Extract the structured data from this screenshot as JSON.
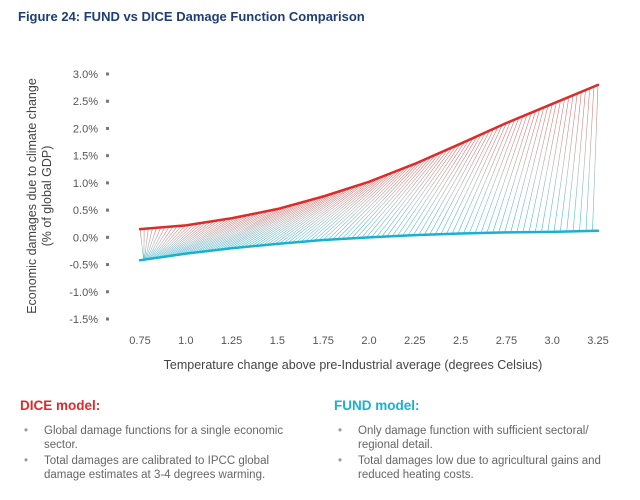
{
  "figure_title": "Figure 24: FUND vs DICE Damage Function Comparison",
  "chart_data": {
    "type": "line",
    "title": "Figure 24: FUND vs DICE Damage Function Comparison",
    "xlabel": "Temperature change above pre-Industrial average (degrees Celsius)",
    "ylabel": "Economic damages due to climate change (% of global GDP)",
    "x_ticks": [
      "0.75",
      "1.0",
      "1.25",
      "1.5",
      "1.75",
      "2.0",
      "2.25",
      "2.5",
      "2.75",
      "3.0",
      "3.25"
    ],
    "y_ticks": [
      "3.0%",
      "2.5%",
      "2.0%",
      "1.5%",
      "1.0%",
      "0.5%",
      "0.0%",
      "-0.5%",
      "-1.0%",
      "-1.5%"
    ],
    "xlim": [
      0.6,
      3.35
    ],
    "ylim": [
      -1.5,
      3.0
    ],
    "grid": false,
    "series": [
      {
        "name": "DICE model",
        "color": "#e02a2a",
        "x": [
          0.75,
          1.0,
          1.25,
          1.5,
          1.75,
          2.0,
          2.25,
          2.5,
          2.75,
          3.0,
          3.25
        ],
        "values": [
          0.15,
          0.22,
          0.35,
          0.52,
          0.75,
          1.02,
          1.35,
          1.72,
          2.1,
          2.45,
          2.8
        ]
      },
      {
        "name": "FUND model",
        "color": "#1ab0cf",
        "x": [
          0.75,
          1.0,
          1.25,
          1.5,
          1.75,
          2.0,
          2.25,
          2.5,
          2.75,
          3.0,
          3.25
        ],
        "values": [
          -0.42,
          -0.3,
          -0.2,
          -0.12,
          -0.05,
          0.0,
          0.04,
          0.07,
          0.09,
          0.1,
          0.12
        ]
      }
    ]
  },
  "legend": {
    "dice": {
      "heading": "DICE model:",
      "bullets": [
        "Global damage functions for a single economic sector.",
        "Total damages are calibrated to IPCC global damage estimates at 3-4 degrees warming."
      ]
    },
    "fund": {
      "heading": "FUND model:",
      "bullets": [
        "Only damage function with sufficient sectoral/ regional detail.",
        "Total damages low due to agricultural gains and reduced heating costs."
      ]
    }
  }
}
